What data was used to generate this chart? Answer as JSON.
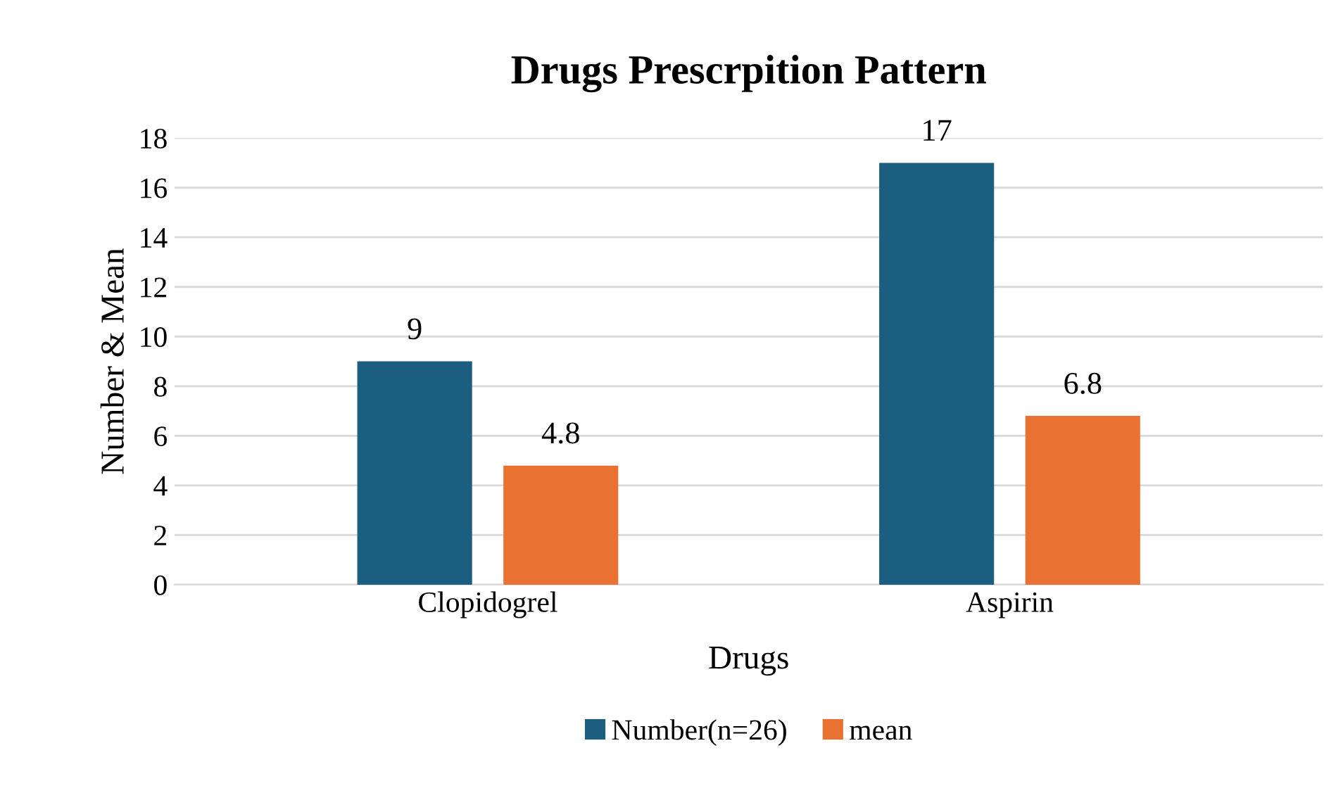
{
  "chart_data": {
    "type": "bar",
    "title": "Drugs Prescrpition Pattern",
    "xlabel": "Drugs",
    "ylabel": "Number & Mean",
    "categories": [
      "Clopidogrel",
      "Aspirin"
    ],
    "series": [
      {
        "name": "Number(n=26)",
        "color": "#1b5e7f",
        "values": [
          9,
          17
        ]
      },
      {
        "name": "mean",
        "color": "#e97132",
        "values": [
          4.8,
          6.8
        ]
      }
    ],
    "ylim": [
      0,
      18
    ],
    "yticks": [
      0,
      2,
      4,
      6,
      8,
      10,
      12,
      14,
      16,
      18
    ],
    "grid": "y",
    "legend": "bottom",
    "data_labels": true
  }
}
